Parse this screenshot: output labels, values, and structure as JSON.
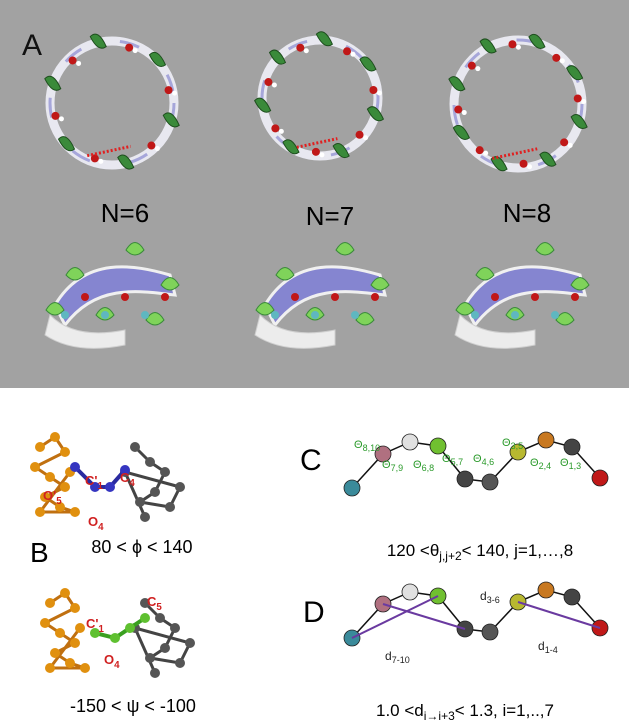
{
  "panel_a": {
    "label": "A",
    "labels": [
      "N=6",
      "N=7",
      "N=8"
    ]
  },
  "panel_b": {
    "label": "B",
    "phi": "80 < ϕ < 140",
    "psi": "-150 < ψ < -100",
    "atoms_phi": [
      {
        "base": "O'",
        "sub": "5"
      },
      {
        "base": "C'",
        "sub": "1"
      },
      {
        "base": "C",
        "sub": "4"
      },
      {
        "base": "O",
        "sub": "4"
      }
    ],
    "atoms_psi": [
      {
        "base": "C'",
        "sub": "1"
      },
      {
        "base": "C",
        "sub": "5"
      },
      {
        "base": "O",
        "sub": "4"
      }
    ]
  },
  "panel_c": {
    "label": "C",
    "theta_symbol": "Θ",
    "angles": [
      "8,10",
      "7,9",
      "6,8",
      "5,7",
      "4,6",
      "3,5",
      "2,4",
      "1,3"
    ],
    "caption": {
      "before": "120 <θ",
      "sub": "j,j+2",
      "after": "< 140, j=1,…,8"
    }
  },
  "panel_d": {
    "label": "D",
    "d_symbol": "d",
    "distances": [
      "3-6",
      "7-10",
      "1-4"
    ],
    "caption": {
      "before": "1.0 <d",
      "sub": "i→i+3",
      "after": "< 1.3, i=1,..,7"
    }
  }
}
